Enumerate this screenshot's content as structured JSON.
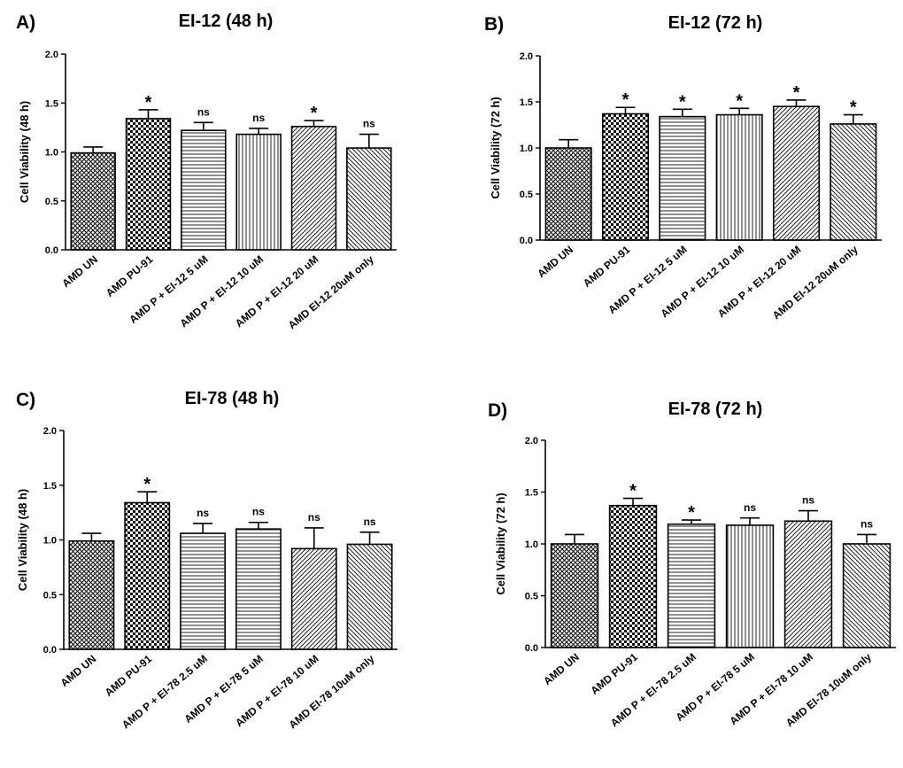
{
  "chart_data": [
    {
      "type": "bar",
      "panel_label": "A)",
      "title": "EI-12 (48 h)",
      "ylabel": "Cell Viability (48 h)",
      "xlabel": "",
      "ylim": [
        0,
        2.0
      ],
      "yticks": [
        "0.0",
        "0.5",
        "1.0",
        "1.5",
        "2.0"
      ],
      "categories": [
        "AMD UN",
        "AMD PU-91",
        "AMD P + EI-12 5 uM",
        "AMD P + EI-12 10 uM",
        "AMD P + EI-12 20 uM",
        "AMD EI-12 20uM only"
      ],
      "values": [
        0.99,
        1.34,
        1.22,
        1.18,
        1.26,
        1.04
      ],
      "errors": [
        0.06,
        0.09,
        0.08,
        0.06,
        0.06,
        0.14
      ],
      "annotations": [
        "",
        "*",
        "ns",
        "ns",
        "*",
        "ns"
      ],
      "patterns": [
        "cross",
        "check",
        "hlines",
        "vlines",
        "diag",
        "diag2"
      ]
    },
    {
      "type": "bar",
      "panel_label": "B)",
      "title": "EI-12 (72 h)",
      "ylabel": "Cell Viability (72 h)",
      "xlabel": "",
      "ylim": [
        0,
        2.0
      ],
      "yticks": [
        "0.0",
        "0.5",
        "1.0",
        "1.5",
        "2.0"
      ],
      "categories": [
        "AMD UN",
        "AMD PU-91",
        "AMD P + EI-12 5 uM",
        "AMD P + EI-12 10 uM",
        "AMD P + EI-12 20 uM",
        "AMD EI-12 20uM only"
      ],
      "values": [
        1.0,
        1.37,
        1.34,
        1.36,
        1.45,
        1.26
      ],
      "errors": [
        0.09,
        0.07,
        0.08,
        0.07,
        0.07,
        0.1
      ],
      "annotations": [
        "",
        "*",
        "*",
        "*",
        "*",
        "*"
      ],
      "patterns": [
        "cross",
        "check",
        "hlines",
        "vlines",
        "diag",
        "diag2"
      ]
    },
    {
      "type": "bar",
      "panel_label": "C)",
      "title": "EI-78 (48 h)",
      "ylabel": "Cell Viability (48 h)",
      "xlabel": "",
      "ylim": [
        0,
        2.0
      ],
      "yticks": [
        "0.0",
        "0.5",
        "1.0",
        "1.5",
        "2.0"
      ],
      "categories": [
        "AMD UN",
        "AMD PU-91",
        "AMD P + EI-78 2.5 uM",
        "AMD P + EI-78 5 uM",
        "AMD P + EI-78 10 uM",
        "AMD EI-78 10uM only"
      ],
      "values": [
        0.99,
        1.34,
        1.06,
        1.1,
        0.92,
        0.96
      ],
      "errors": [
        0.07,
        0.1,
        0.09,
        0.06,
        0.19,
        0.11
      ],
      "annotations": [
        "",
        "*",
        "ns",
        "ns",
        "ns",
        "ns"
      ],
      "patterns": [
        "cross",
        "check",
        "hlines",
        "hlines",
        "diag",
        "diag2"
      ]
    },
    {
      "type": "bar",
      "panel_label": "D)",
      "title": "EI-78 (72 h)",
      "ylabel": "Cell Viability (72 h)",
      "xlabel": "",
      "ylim": [
        0,
        2.0
      ],
      "yticks": [
        "0.0",
        "0.5",
        "1.0",
        "1.5",
        "2.0"
      ],
      "categories": [
        "AMD UN",
        "AMD PU-91",
        "AMD P + EI-78 2.5 uM",
        "AMD P + EI-78 5 uM",
        "AMD P + EI-78 10 uM",
        "AMD EI-78 10uM only"
      ],
      "values": [
        1.0,
        1.37,
        1.19,
        1.18,
        1.22,
        1.0
      ],
      "errors": [
        0.09,
        0.07,
        0.04,
        0.07,
        0.1,
        0.09
      ],
      "annotations": [
        "",
        "*",
        "*",
        "ns",
        "ns",
        "ns"
      ],
      "patterns": [
        "cross",
        "check",
        "hlines",
        "vlines",
        "diag",
        "diag2"
      ]
    }
  ]
}
